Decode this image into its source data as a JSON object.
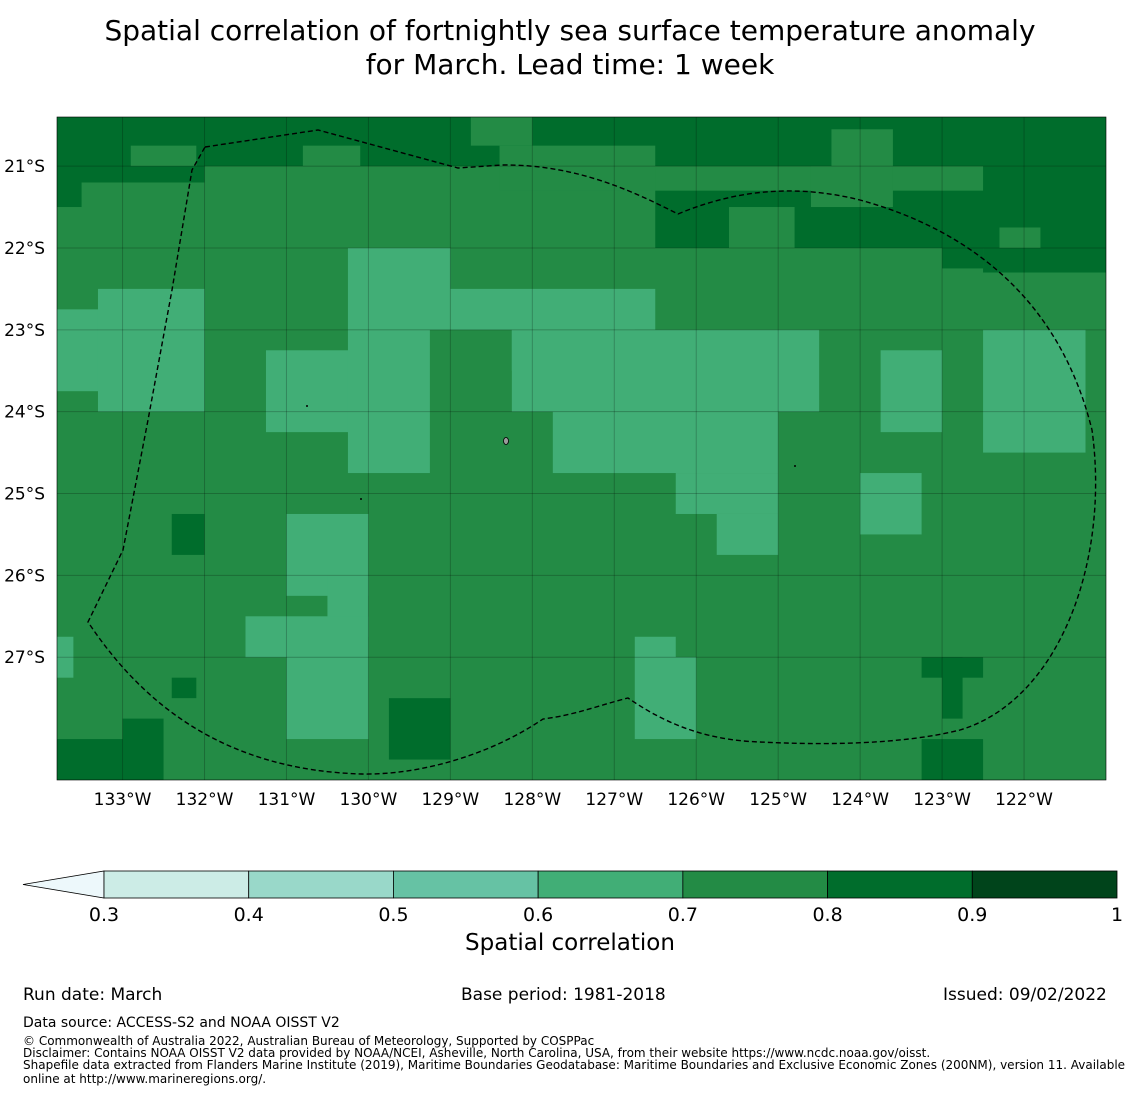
{
  "title": {
    "line1": "Spatial correlation of fortnightly sea surface temperature anomaly",
    "line2": "for March. Lead time: 1 week"
  },
  "chart_data": {
    "type": "heatmap",
    "title": "Spatial correlation of fortnightly sea surface temperature anomaly for March. Lead time: 1 week",
    "x_range_deg": [
      -133.8,
      -121.0
    ],
    "y_range_deg": [
      -28.5,
      -20.4
    ],
    "x_ticks": [
      {
        "value": -133,
        "label": "133°W"
      },
      {
        "value": -132,
        "label": "132°W"
      },
      {
        "value": -131,
        "label": "131°W"
      },
      {
        "value": -130,
        "label": "130°W"
      },
      {
        "value": -129,
        "label": "129°W"
      },
      {
        "value": -128,
        "label": "128°W"
      },
      {
        "value": -127,
        "label": "127°W"
      },
      {
        "value": -126,
        "label": "126°W"
      },
      {
        "value": -125,
        "label": "125°W"
      },
      {
        "value": -124,
        "label": "124°W"
      },
      {
        "value": -123,
        "label": "123°W"
      },
      {
        "value": -122,
        "label": "122°W"
      }
    ],
    "y_ticks": [
      {
        "value": -21,
        "label": "21°S"
      },
      {
        "value": -22,
        "label": "22°S"
      },
      {
        "value": -23,
        "label": "23°S"
      },
      {
        "value": -24,
        "label": "24°S"
      },
      {
        "value": -25,
        "label": "25°S"
      },
      {
        "value": -26,
        "label": "26°S"
      },
      {
        "value": -27,
        "label": "27°S"
      }
    ],
    "grid": true,
    "background_class": "0.7-0.8",
    "regions": [
      {
        "class": "0.8-0.9",
        "lon": [
          -133.8,
          -121.0
        ],
        "lat": [
          -21.0,
          -20.4
        ]
      },
      {
        "class": "0.8-0.9",
        "lon": [
          -133.8,
          -132.0
        ],
        "lat": [
          -21.2,
          -20.4
        ]
      },
      {
        "class": "0.8-0.9",
        "lon": [
          -133.8,
          -133.5
        ],
        "lat": [
          -21.5,
          -20.4
        ]
      },
      {
        "class": "0.8-0.9",
        "lon": [
          -126.5,
          -121.0
        ],
        "lat": [
          -22.0,
          -21.3
        ]
      },
      {
        "class": "0.8-0.9",
        "lon": [
          -122.5,
          -121.0
        ],
        "lat": [
          -22.3,
          -21.0
        ]
      },
      {
        "class": "0.8-0.9",
        "lon": [
          -123.0,
          -122.5
        ],
        "lat": [
          -22.25,
          -22.0
        ]
      },
      {
        "class": "0.7-0.8",
        "lon": [
          -132.9,
          -132.1
        ],
        "lat": [
          -21.0,
          -20.75
        ]
      },
      {
        "class": "0.7-0.8",
        "lon": [
          -130.8,
          -130.1
        ],
        "lat": [
          -21.0,
          -20.75
        ]
      },
      {
        "class": "0.7-0.8",
        "lon": [
          -128.4,
          -126.5
        ],
        "lat": [
          -21.3,
          -20.75
        ]
      },
      {
        "class": "0.7-0.8",
        "lon": [
          -128.75,
          -128.0
        ],
        "lat": [
          -20.75,
          -20.4
        ]
      },
      {
        "class": "0.7-0.8",
        "lon": [
          -124.35,
          -123.6
        ],
        "lat": [
          -21.25,
          -20.55
        ]
      },
      {
        "class": "0.7-0.8",
        "lon": [
          -124.6,
          -123.6
        ],
        "lat": [
          -21.5,
          -21.0
        ]
      },
      {
        "class": "0.7-0.8",
        "lon": [
          -125.6,
          -124.8
        ],
        "lat": [
          -22.0,
          -21.5
        ]
      },
      {
        "class": "0.7-0.8",
        "lon": [
          -122.3,
          -121.8
        ],
        "lat": [
          -22.0,
          -21.75
        ]
      },
      {
        "class": "0.6-0.7",
        "lon": [
          -133.8,
          -132.0
        ],
        "lat": [
          -23.75,
          -22.75
        ]
      },
      {
        "class": "0.6-0.7",
        "lon": [
          -133.3,
          -132.0
        ],
        "lat": [
          -24.0,
          -22.5
        ]
      },
      {
        "class": "0.6-0.7",
        "lon": [
          -130.25,
          -129.0
        ],
        "lat": [
          -23.0,
          -22.0
        ]
      },
      {
        "class": "0.6-0.7",
        "lon": [
          -129.0,
          -126.5
        ],
        "lat": [
          -23.0,
          -22.5
        ]
      },
      {
        "class": "0.6-0.7",
        "lon": [
          -131.25,
          -129.75
        ],
        "lat": [
          -24.25,
          -23.25
        ]
      },
      {
        "class": "0.6-0.7",
        "lon": [
          -130.25,
          -129.25
        ],
        "lat": [
          -24.75,
          -23.0
        ]
      },
      {
        "class": "0.6-0.7",
        "lon": [
          -128.25,
          -126.75
        ],
        "lat": [
          -23.5,
          -23.0
        ]
      },
      {
        "class": "0.6-0.7",
        "lon": [
          -128.25,
          -124.5
        ],
        "lat": [
          -24.0,
          -23.0
        ]
      },
      {
        "class": "0.6-0.7",
        "lon": [
          -127.75,
          -125.0
        ],
        "lat": [
          -24.75,
          -24.0
        ]
      },
      {
        "class": "0.6-0.7",
        "lon": [
          -126.25,
          -125.0
        ],
        "lat": [
          -25.25,
          -24.75
        ]
      },
      {
        "class": "0.6-0.7",
        "lon": [
          -125.75,
          -125.0
        ],
        "lat": [
          -25.75,
          -25.25
        ]
      },
      {
        "class": "0.6-0.7",
        "lon": [
          -124.0,
          -123.25
        ],
        "lat": [
          -25.5,
          -24.75
        ]
      },
      {
        "class": "0.6-0.7",
        "lon": [
          -123.75,
          -123.0
        ],
        "lat": [
          -24.25,
          -23.25
        ]
      },
      {
        "class": "0.6-0.7",
        "lon": [
          -122.5,
          -121.25
        ],
        "lat": [
          -24.5,
          -23.0
        ]
      },
      {
        "class": "0.6-0.7",
        "lon": [
          -131.0,
          -130.0
        ],
        "lat": [
          -26.25,
          -25.25
        ]
      },
      {
        "class": "0.6-0.7",
        "lon": [
          -130.5,
          -130.0
        ],
        "lat": [
          -26.75,
          -26.0
        ]
      },
      {
        "class": "0.6-0.7",
        "lon": [
          -131.5,
          -130.0
        ],
        "lat": [
          -27.0,
          -26.5
        ]
      },
      {
        "class": "0.6-0.7",
        "lon": [
          -131.0,
          -130.0
        ],
        "lat": [
          -28.0,
          -27.0
        ]
      },
      {
        "class": "0.6-0.7",
        "lon": [
          -133.8,
          -133.6
        ],
        "lat": [
          -27.25,
          -26.75
        ]
      },
      {
        "class": "0.6-0.7",
        "lon": [
          -126.75,
          -126.25
        ],
        "lat": [
          -27.0,
          -26.75
        ]
      },
      {
        "class": "0.6-0.7",
        "lon": [
          -126.75,
          -126.0
        ],
        "lat": [
          -28.0,
          -27.0
        ]
      },
      {
        "class": "0.8-0.9",
        "lon": [
          -132.4,
          -132.0
        ],
        "lat": [
          -25.75,
          -25.25
        ]
      },
      {
        "class": "0.8-0.9",
        "lon": [
          -132.4,
          -132.1
        ],
        "lat": [
          -27.5,
          -27.25
        ]
      },
      {
        "class": "0.8-0.9",
        "lon": [
          -133.8,
          -133.0
        ],
        "lat": [
          -28.5,
          -28.0
        ]
      },
      {
        "class": "0.8-0.9",
        "lon": [
          -133.0,
          -132.5
        ],
        "lat": [
          -28.5,
          -27.75
        ]
      },
      {
        "class": "0.8-0.9",
        "lon": [
          -129.75,
          -129.0
        ],
        "lat": [
          -28.25,
          -27.5
        ]
      },
      {
        "class": "0.8-0.9",
        "lon": [
          -123.25,
          -122.5
        ],
        "lat": [
          -27.25,
          -27.0
        ]
      },
      {
        "class": "0.8-0.9",
        "lon": [
          -123.0,
          -122.75
        ],
        "lat": [
          -27.75,
          -27.0
        ]
      },
      {
        "class": "0.8-0.9",
        "lon": [
          -123.25,
          -122.5
        ],
        "lat": [
          -28.5,
          -28.0
        ]
      }
    ],
    "colorbar": {
      "label": "Spatial correlation",
      "boundaries": [
        0.3,
        0.4,
        0.5,
        0.6,
        0.7,
        0.8,
        0.9,
        1
      ],
      "tick_labels": [
        "0.3",
        "0.4",
        "0.5",
        "0.6",
        "0.7",
        "0.8",
        "0.9",
        "1"
      ],
      "colors": [
        "#ccece6",
        "#99d8c9",
        "#66c2a4",
        "#41ae76",
        "#238b45",
        "#006d2c",
        "#00441b"
      ],
      "under_color": "#edf8fb",
      "extend": "min"
    },
    "eez_boundary": "dashed"
  },
  "footer": {
    "run_date": "Run date: March",
    "base_period": "Base period: 1981-2018",
    "issued": "Issued: 09/02/2022",
    "data_source": "Data source: ACCESS-S2 and NOAA OISST V2",
    "copyright": "© Commonwealth of Australia 2022, Australian Bureau of Meteorology, Supported by COSPPac",
    "disclaimer": "Disclaimer: Contains NOAA OISST V2 data provided by NOAA/NCEI, Asheville, North Carolina, USA, from their website https://www.ncdc.noaa.gov/oisst.",
    "shapefile": "Shapefile data extracted from Flanders Marine Institute (2019), Maritime Boundaries Geodatabase: Maritime Boundaries and Exclusive Economic Zones (200NM), version 11. Available online at http://www.marineregions.org/."
  }
}
